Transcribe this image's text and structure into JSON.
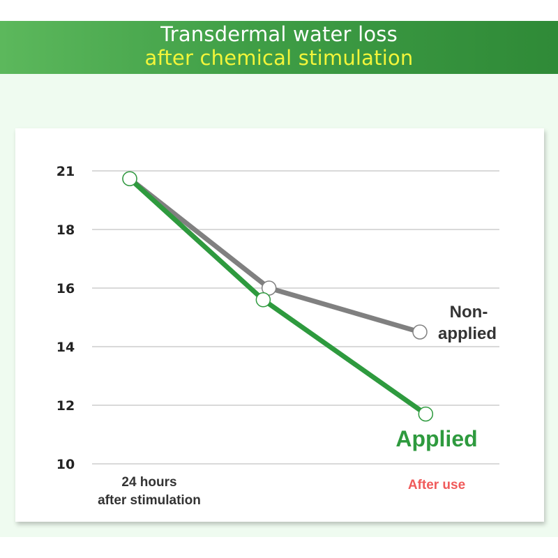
{
  "header": {
    "title_line1": "Transdermal water loss",
    "title_line2": "after chemical stimulation"
  },
  "colors": {
    "applied": "#2e9a3e",
    "non_applied": "#808080",
    "after_use_label": "#f05a5a",
    "title_highlight": "#f2f53a"
  },
  "chart_data": {
    "type": "line",
    "title": "Transdermal water loss after chemical stimulation",
    "xlabel": "",
    "ylabel": "",
    "ylim": [
      10,
      21
    ],
    "y_ticks": [
      21,
      18,
      16,
      14,
      12,
      10
    ],
    "grid": true,
    "x_labels": [
      {
        "x": 0,
        "lines": [
          "24 hours",
          "after stimulation"
        ],
        "color": "#333333"
      },
      {
        "x": 2,
        "lines": [
          "After use"
        ],
        "color": "#f05a5a"
      }
    ],
    "series": [
      {
        "name": "Non-applied",
        "label_lines": [
          "Non-",
          "applied"
        ],
        "color": "#808080",
        "points": [
          [
            0,
            20.6
          ],
          [
            0.96,
            16.0
          ],
          [
            2,
            14.5
          ]
        ]
      },
      {
        "name": "Applied",
        "label_lines": [
          "Applied"
        ],
        "color": "#2e9a3e",
        "points": [
          [
            0,
            20.6
          ],
          [
            0.92,
            15.6
          ],
          [
            2.04,
            11.7
          ]
        ]
      }
    ]
  }
}
